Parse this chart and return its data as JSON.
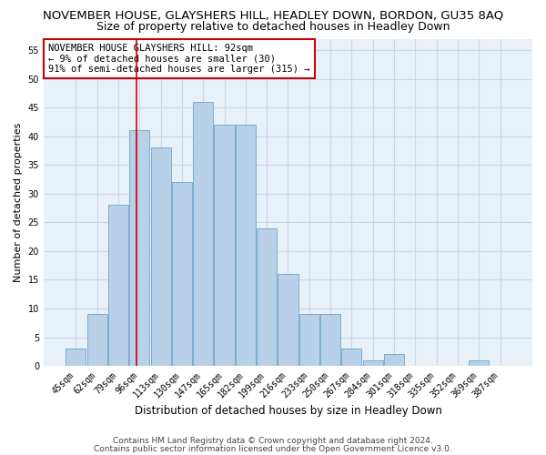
{
  "title": "NOVEMBER HOUSE, GLAYSHERS HILL, HEADLEY DOWN, BORDON, GU35 8AQ",
  "subtitle": "Size of property relative to detached houses in Headley Down",
  "xlabel": "Distribution of detached houses by size in Headley Down",
  "ylabel": "Number of detached properties",
  "categories": [
    "45sqm",
    "62sqm",
    "79sqm",
    "96sqm",
    "113sqm",
    "130sqm",
    "147sqm",
    "165sqm",
    "182sqm",
    "199sqm",
    "216sqm",
    "233sqm",
    "250sqm",
    "267sqm",
    "284sqm",
    "301sqm",
    "318sqm",
    "335sqm",
    "352sqm",
    "369sqm",
    "387sqm"
  ],
  "values": [
    3,
    9,
    28,
    41,
    38,
    32,
    46,
    42,
    42,
    24,
    16,
    9,
    9,
    3,
    1,
    2,
    0,
    0,
    0,
    1,
    0
  ],
  "bar_color": "#b8d0e8",
  "bar_edge_color": "#7aaed0",
  "grid_color": "#c8d8ec",
  "background_color": "#e8f0f8",
  "property_line_color": "#cc0000",
  "annotation_text": "NOVEMBER HOUSE GLAYSHERS HILL: 92sqm\n← 9% of detached houses are smaller (30)\n91% of semi-detached houses are larger (315) →",
  "annotation_box_color": "#cc0000",
  "ylim": [
    0,
    57
  ],
  "yticks": [
    0,
    5,
    10,
    15,
    20,
    25,
    30,
    35,
    40,
    45,
    50,
    55
  ],
  "footer_line1": "Contains HM Land Registry data © Crown copyright and database right 2024.",
  "footer_line2": "Contains public sector information licensed under the Open Government Licence v3.0.",
  "title_fontsize": 9.5,
  "subtitle_fontsize": 9,
  "annot_fontsize": 7.5,
  "tick_fontsize": 7,
  "ylabel_fontsize": 8,
  "xlabel_fontsize": 8.5,
  "footer_fontsize": 6.5
}
